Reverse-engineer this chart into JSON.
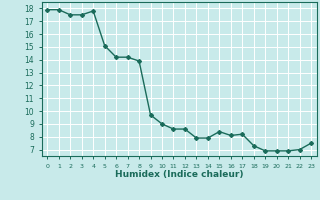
{
  "x": [
    0,
    1,
    2,
    3,
    4,
    5,
    6,
    7,
    8,
    9,
    10,
    11,
    12,
    13,
    14,
    15,
    16,
    17,
    18,
    19,
    20,
    21,
    22,
    23
  ],
  "y": [
    17.9,
    17.9,
    17.5,
    17.5,
    17.8,
    15.1,
    14.2,
    14.2,
    13.9,
    9.7,
    9.0,
    8.6,
    8.6,
    7.9,
    7.9,
    8.4,
    8.1,
    8.2,
    7.3,
    6.9,
    6.9,
    6.9,
    7.0,
    7.5
  ],
  "line_color": "#1a6b5a",
  "bg_color": "#c8eaea",
  "grid_color": "#ffffff",
  "xlabel": "Humidex (Indice chaleur)",
  "ylabel_ticks": [
    7,
    8,
    9,
    10,
    11,
    12,
    13,
    14,
    15,
    16,
    17,
    18
  ],
  "xlim": [
    -0.5,
    23.5
  ],
  "ylim": [
    6.5,
    18.5
  ],
  "font_color": "#1a6b5a",
  "xtick_labels": [
    "0",
    "1",
    "2",
    "3",
    "4",
    "5",
    "6",
    "7",
    "8",
    "9",
    "10",
    "11",
    "12",
    "13",
    "14",
    "15",
    "16",
    "17",
    "18",
    "19",
    "20",
    "21",
    "22",
    "23"
  ],
  "marker": "D",
  "markersize": 2,
  "linewidth": 1.0
}
